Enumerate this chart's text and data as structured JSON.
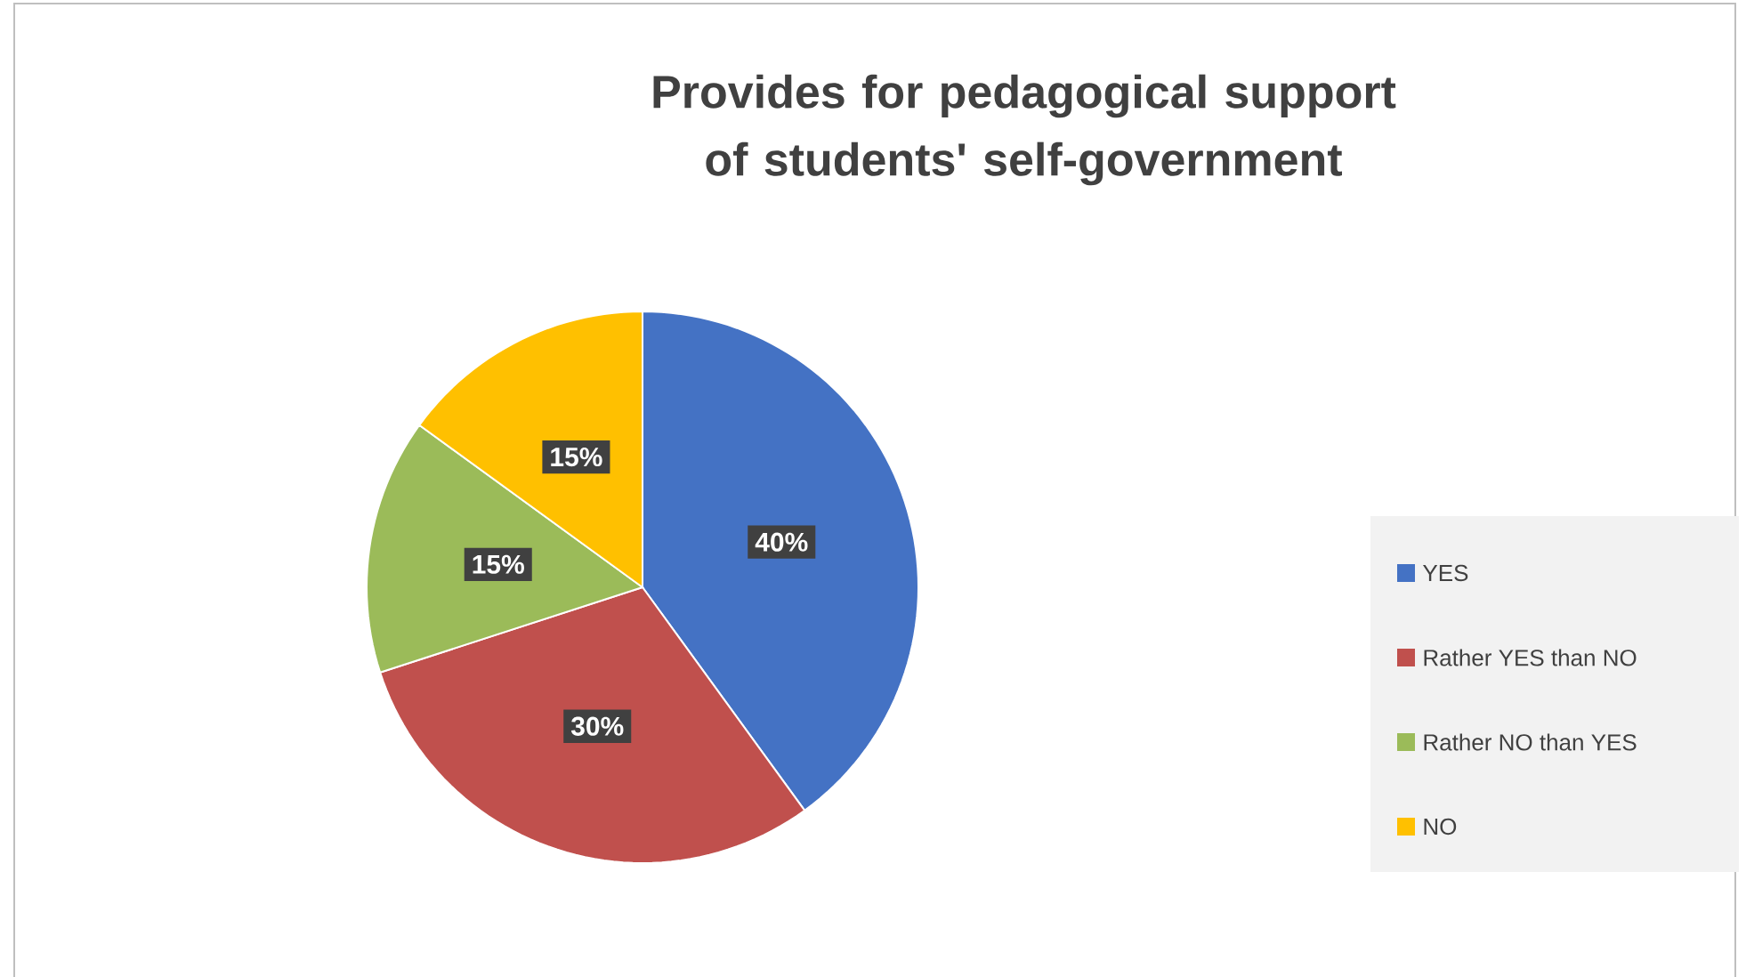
{
  "chart_data": {
    "type": "pie",
    "title": "Provides for pedagogical support of students' self-government",
    "categories": [
      "YES",
      "Rather YES than NO",
      "Rather NO than YES",
      "NO"
    ],
    "values": [
      40,
      30,
      15,
      15
    ],
    "value_labels": [
      "40%",
      "30%",
      "15%",
      "15%"
    ],
    "colors": [
      "#4472c4",
      "#c0504d",
      "#9bbb59",
      "#ffc000"
    ],
    "legend": "right"
  }
}
